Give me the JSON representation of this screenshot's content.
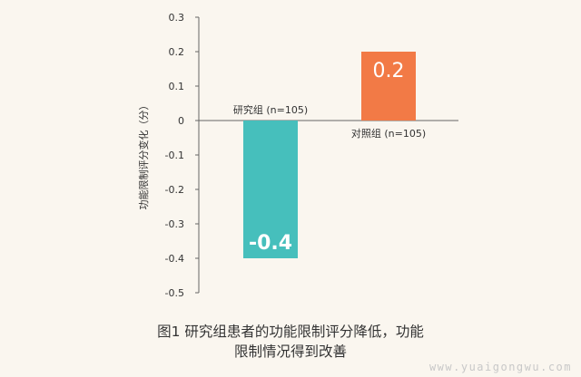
{
  "chart_data": {
    "type": "bar",
    "categories": [
      "研究组 (n=105)",
      "对照组 (n=105)"
    ],
    "values": [
      -0.4,
      0.2
    ],
    "value_labels": [
      "-0.4",
      "0.2"
    ],
    "colors": [
      "#46bfbc",
      "#f27a46"
    ],
    "ylabel": "功能限制评分变化（分）",
    "ylim": [
      -0.5,
      0.3
    ],
    "yticks": [
      0.3,
      0.2,
      0.1,
      0,
      -0.1,
      -0.2,
      -0.3,
      -0.4,
      -0.5
    ],
    "grid": false,
    "legend": "none"
  },
  "caption": {
    "line1": "图1  研究组患者的功能限制评分降低，功能",
    "line2": "限制情况得到改善"
  },
  "watermark": "www.yuaigongwu.com"
}
